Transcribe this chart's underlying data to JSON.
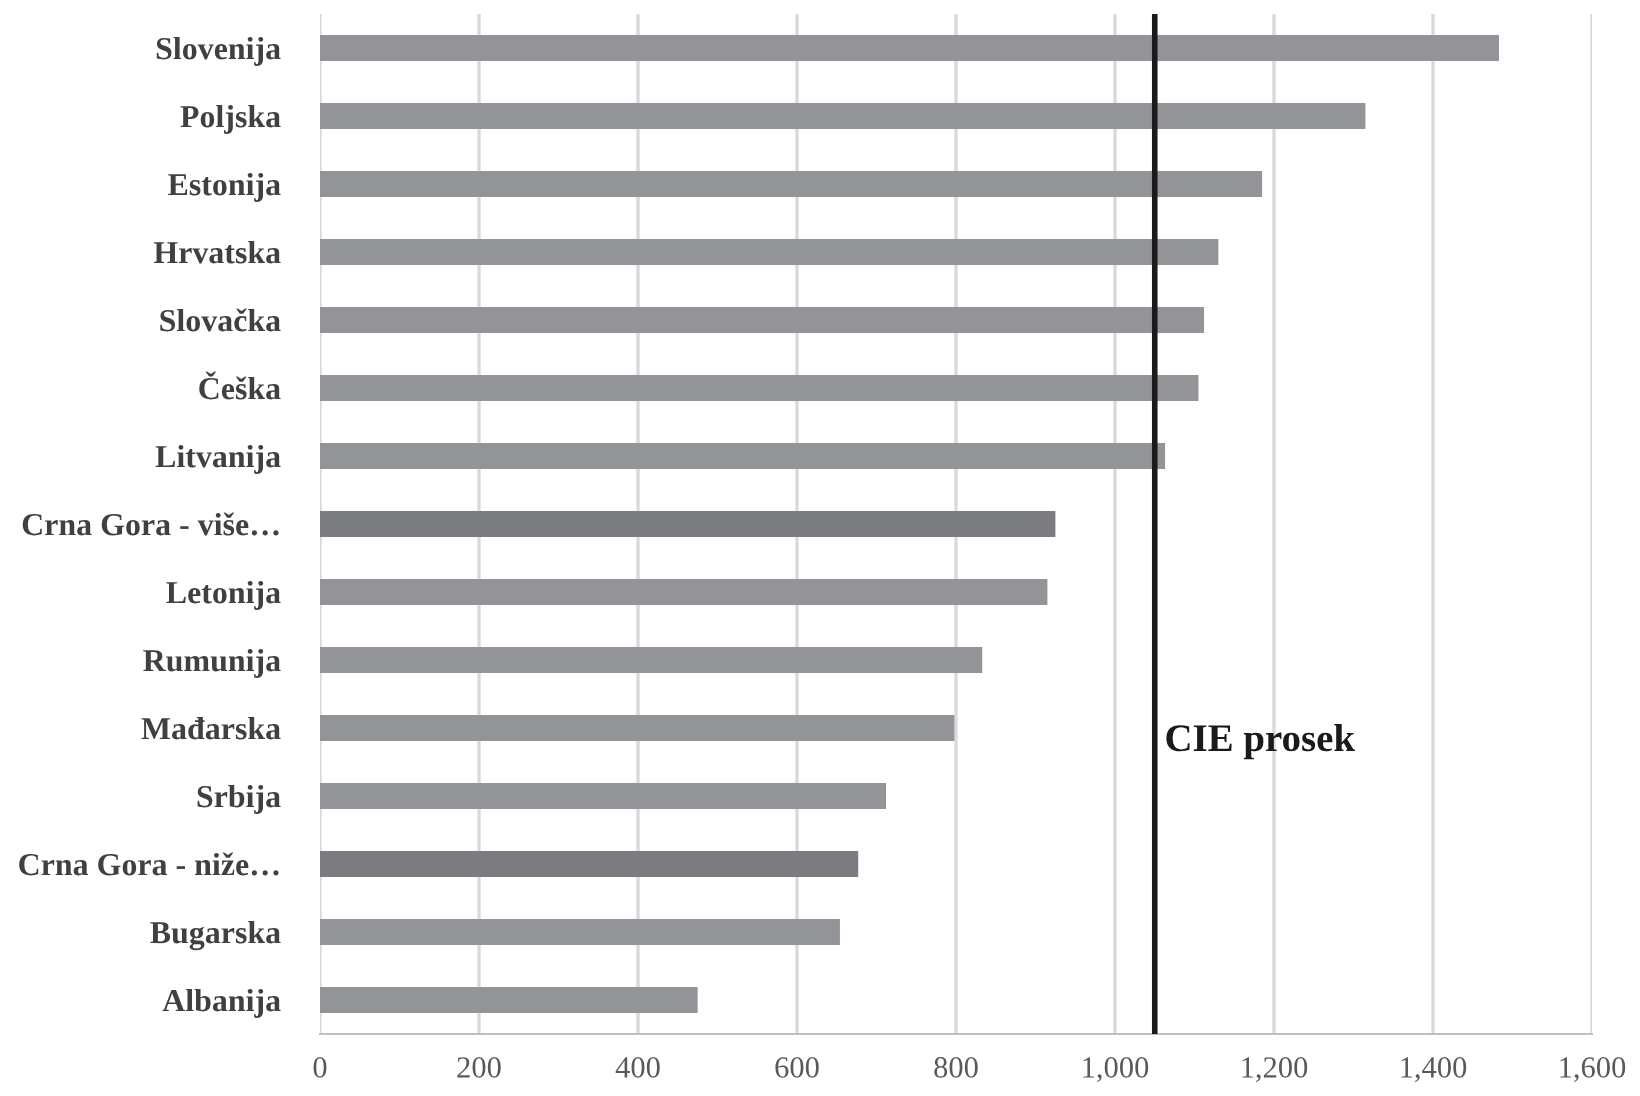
{
  "chart_data": {
    "type": "bar",
    "orientation": "horizontal",
    "categories": [
      "Slovenija",
      "Poljska",
      "Estonija",
      "Hrvatska",
      "Slovačka",
      "Češka",
      "Litvanija",
      "Crna Gora - više…",
      "Letonija",
      "Rumunija",
      "Mađarska",
      "Srbija",
      "Crna Gora - niže…",
      "Bugarska",
      "Albanija"
    ],
    "values": [
      1483,
      1315,
      1185,
      1130,
      1112,
      1105,
      1063,
      925,
      915,
      833,
      798,
      712,
      677,
      654,
      475
    ],
    "colors": [
      "#939497",
      "#939497",
      "#939497",
      "#939497",
      "#939497",
      "#939497",
      "#939497",
      "#7b7c80",
      "#939497",
      "#939497",
      "#939497",
      "#939497",
      "#7b7c80",
      "#939497",
      "#939497"
    ],
    "xlim": [
      0,
      1600
    ],
    "xticks": [
      0,
      200,
      400,
      600,
      800,
      {
        "value": 1000,
        "label": "1,000"
      },
      {
        "value": 1200,
        "label": "1,200"
      },
      {
        "value": 1400,
        "label": "1,400"
      },
      {
        "value": 1600,
        "label": "1,600"
      }
    ],
    "grid": "x",
    "ref_lines": [
      {
        "axis": "x",
        "value": 1050,
        "label": "CIE prosek",
        "color": "#1a1a1a"
      }
    ]
  }
}
